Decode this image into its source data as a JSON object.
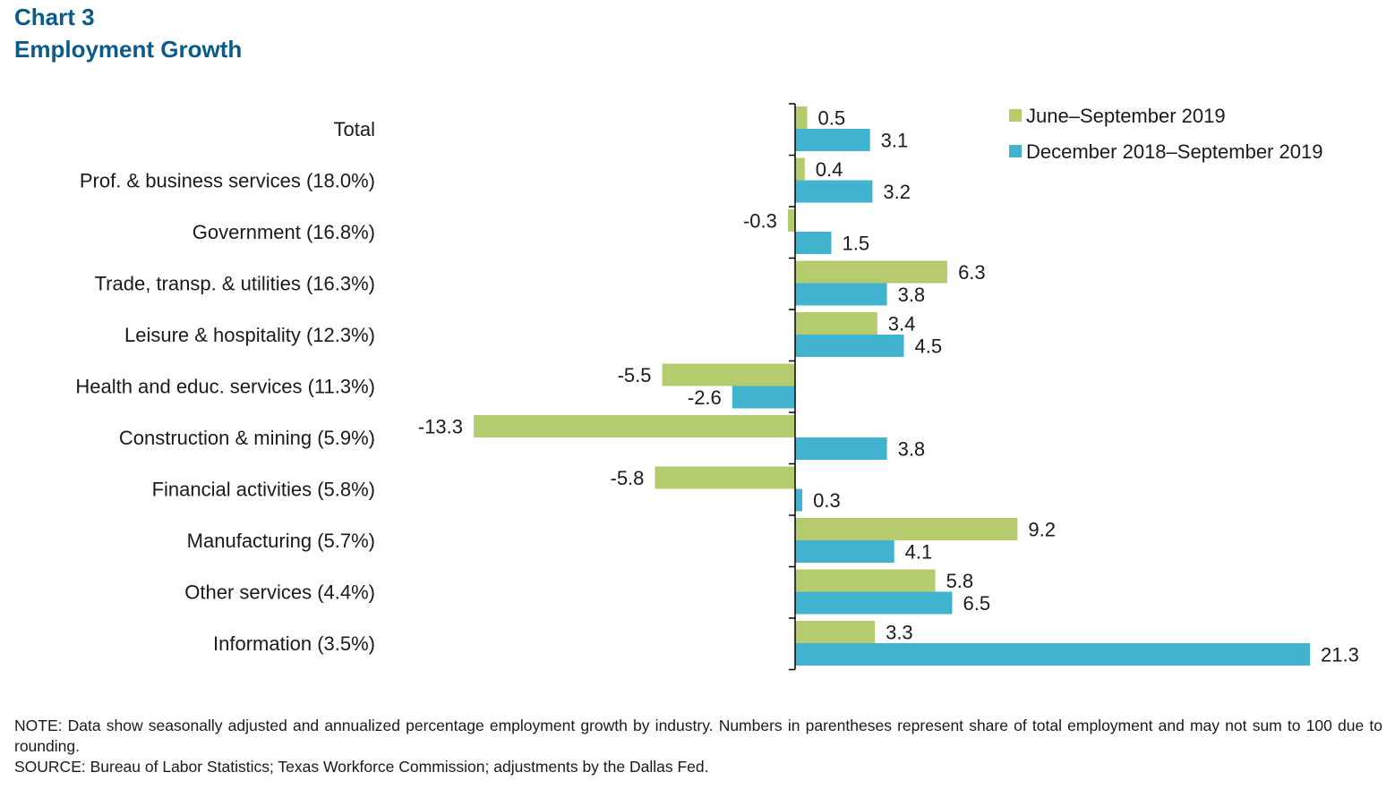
{
  "title_line1": "Chart 3",
  "title_line2": "Employment Growth",
  "chart_data": {
    "type": "bar",
    "orientation": "horizontal",
    "categories": [
      "Total",
      "Prof. & business services (18.0%)",
      "Government (16.8%)",
      "Trade, transp. & utilities (16.3%)",
      "Leisure & hospitality (12.3%)",
      "Health and educ. services (11.3%)",
      "Construction & mining (5.9%)",
      "Financial activities (5.8%)",
      "Manufacturing (5.7%)",
      "Other services (4.4%)",
      "Information (3.5%)"
    ],
    "series": [
      {
        "name": "June–September 2019",
        "color": "#b5cc6e",
        "values": [
          0.5,
          0.4,
          -0.3,
          6.3,
          3.4,
          -5.5,
          -13.3,
          -5.8,
          9.2,
          5.8,
          3.3
        ],
        "labels": [
          "0.5",
          "0.4",
          "-0.3",
          "6.3",
          "3.4",
          "-5.5",
          "-13.3",
          "-5.8",
          "9.2",
          "5.8",
          "3.3"
        ]
      },
      {
        "name": "December 2018–September 2019",
        "color": "#42b3ce",
        "values": [
          3.1,
          3.2,
          1.5,
          3.8,
          4.5,
          -2.6,
          3.8,
          0.3,
          4.1,
          6.5,
          21.3
        ],
        "labels": [
          "3.1",
          "3.2",
          "1.5",
          "3.8",
          "4.5",
          "-2.6",
          "3.8",
          "0.3",
          "4.1",
          "6.5",
          "21.3"
        ]
      }
    ],
    "xlim": [
      -13.3,
      21.3
    ],
    "legend_position": "top-right",
    "grid": false
  },
  "note": "NOTE: Data show seasonally adjusted and annualized percentage employment growth by industry. Numbers in parentheses represent share of total employment and may not sum to 100 due to rounding.",
  "source": "SOURCE: Bureau of Labor Statistics; Texas Workforce Commission; adjustments by the Dallas Fed."
}
